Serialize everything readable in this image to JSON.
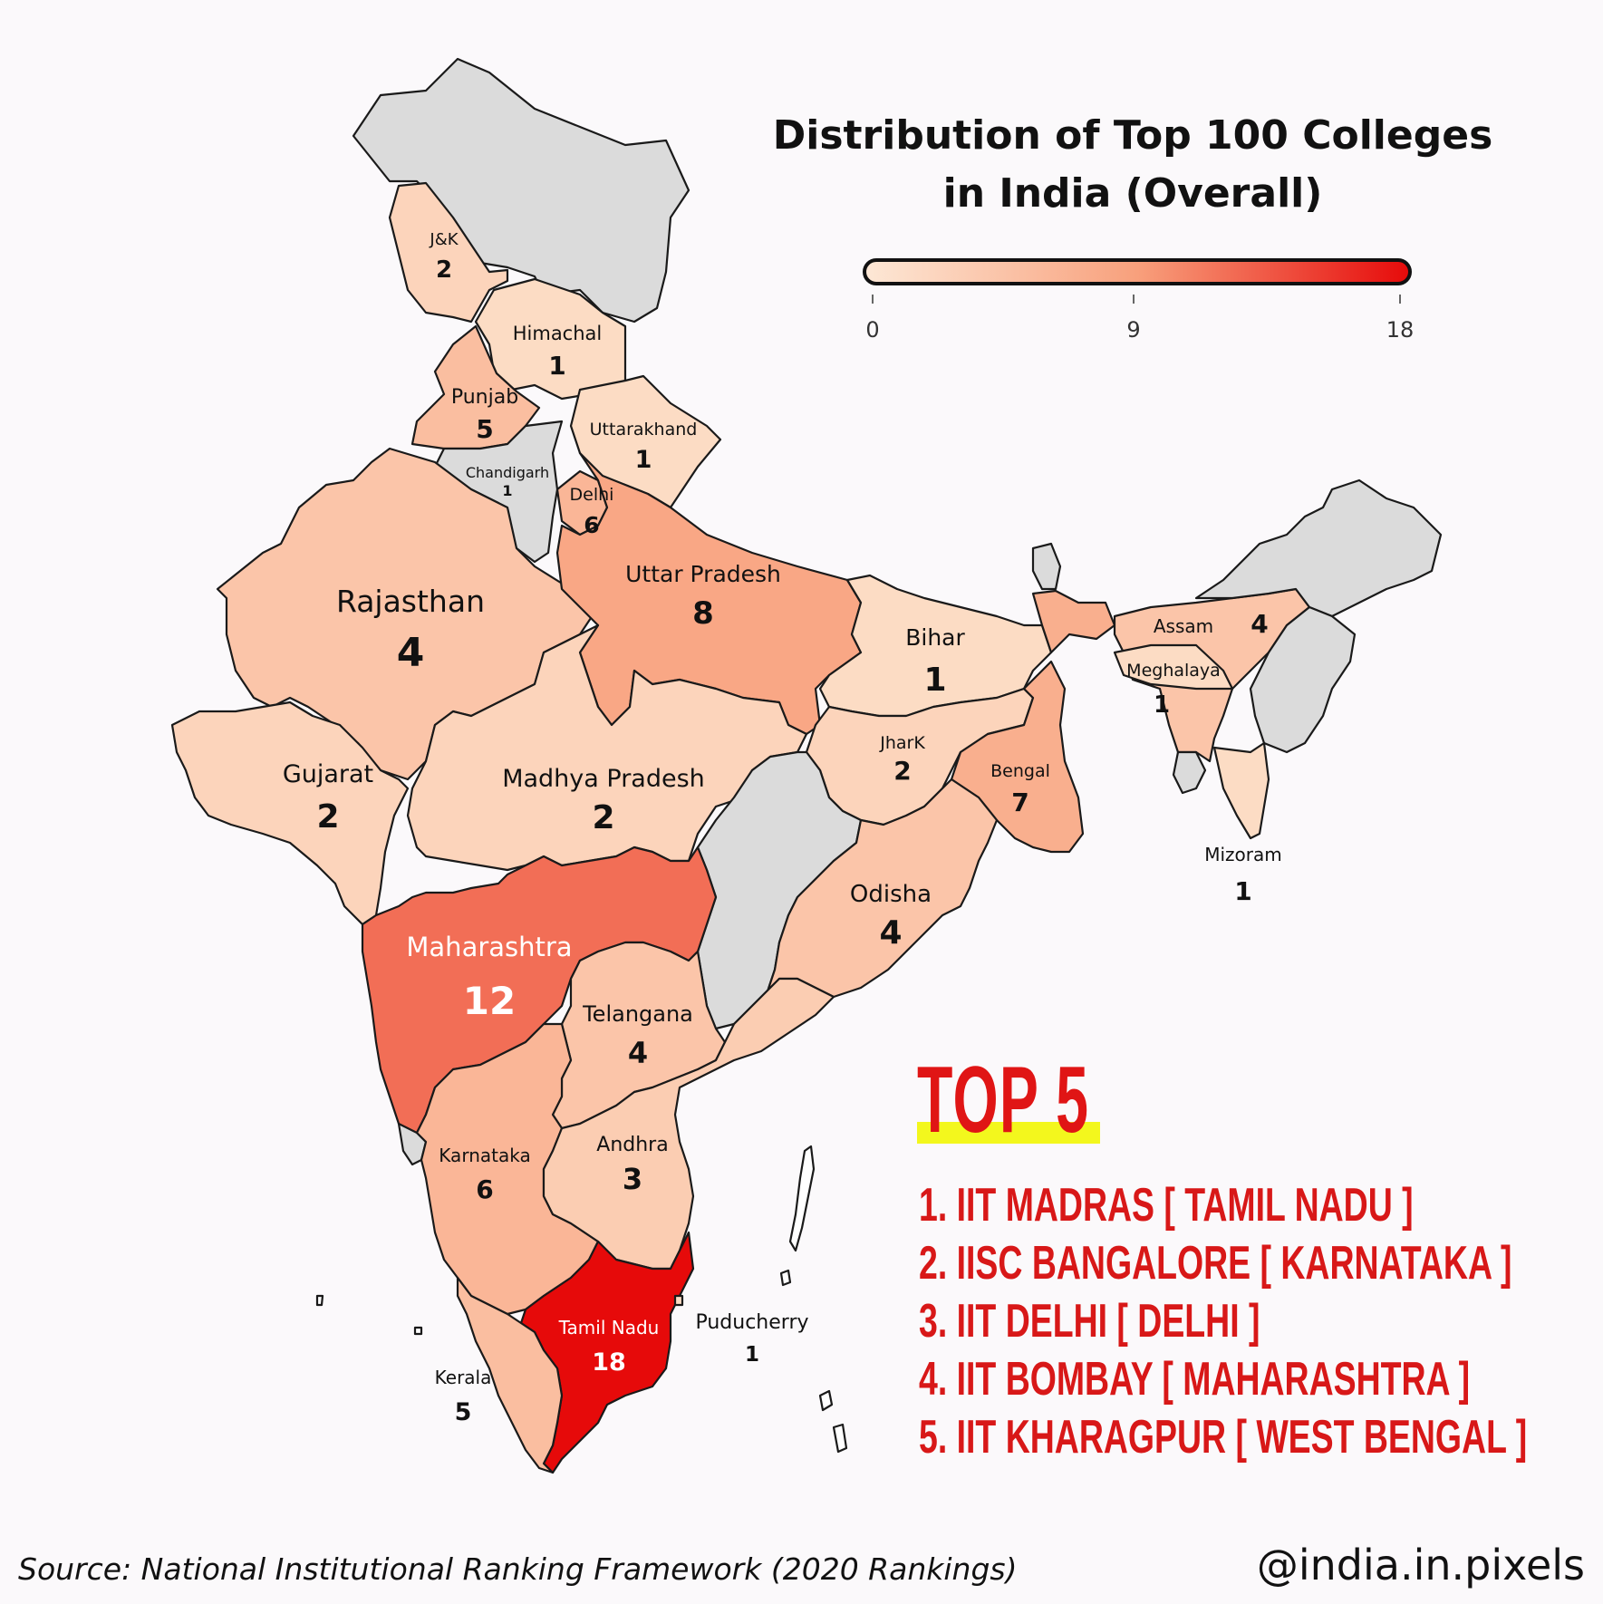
{
  "title": "Distribution of Top 100 Colleges in India (Overall)",
  "legend": {
    "min": "0",
    "mid": "9",
    "max": "18",
    "color_low": "#fde3cd",
    "color_high": "#e60a0a"
  },
  "colors": {
    "no_data": "#dbdbdb",
    "background": "#fbf9fb",
    "accent_red": "#d81818",
    "highlight_yellow": "#f3f71d"
  },
  "states": {
    "ladakh": {
      "name": "",
      "value": null
    },
    "jk": {
      "name": "J&K",
      "value": "2"
    },
    "himachal": {
      "name": "Himachal",
      "value": "1"
    },
    "punjab": {
      "name": "Punjab",
      "value": "5"
    },
    "chandigarh": {
      "name": "Chandigarh",
      "value": "1"
    },
    "uttarakhand": {
      "name": "Uttarakhand",
      "value": "1"
    },
    "delhi": {
      "name": "Delhi",
      "value": "6"
    },
    "haryana": {
      "name": "",
      "value": null
    },
    "rajasthan": {
      "name": "Rajasthan",
      "value": "4"
    },
    "up": {
      "name": "Uttar Pradesh",
      "value": "8"
    },
    "bihar": {
      "name": "Bihar",
      "value": "1"
    },
    "sikkim": {
      "name": "",
      "value": null
    },
    "assam": {
      "name": "Assam",
      "value": "4"
    },
    "meghalaya": {
      "name": "Meghalaya",
      "value": "1"
    },
    "arunachal": {
      "name": "",
      "value": null
    },
    "nagaland_manipur": {
      "name": "",
      "value": null
    },
    "tripura": {
      "name": "",
      "value": null
    },
    "mizoram": {
      "name": "Mizoram",
      "value": "1"
    },
    "gujarat": {
      "name": "Gujarat",
      "value": "2"
    },
    "mp": {
      "name": "Madhya Pradesh",
      "value": "2"
    },
    "jharkhand": {
      "name": "JharK",
      "value": "2"
    },
    "bengal": {
      "name": "Bengal",
      "value": "7"
    },
    "chhattisgarh": {
      "name": "",
      "value": null
    },
    "odisha": {
      "name": "Odisha",
      "value": "4"
    },
    "maharashtra": {
      "name": "Maharashtra",
      "value": "12"
    },
    "telangana": {
      "name": "Telangana",
      "value": "4"
    },
    "goa": {
      "name": "",
      "value": null
    },
    "karnataka": {
      "name": "Karnataka",
      "value": "6"
    },
    "andhra": {
      "name": "Andhra",
      "value": "3"
    },
    "tamilnadu": {
      "name": "Tamil Nadu",
      "value": "18"
    },
    "kerala": {
      "name": "Kerala",
      "value": "5"
    },
    "puducherry": {
      "name": "Puducherry",
      "value": "1"
    }
  },
  "top5": {
    "heading": "TOP 5",
    "items": [
      "1. IIT MADRAS [ TAMIL NADU ]",
      "2. IISC BANGALORE [ KARNATAKA ]",
      "3. IIT DELHI [ DELHI ]",
      "4. IIT BOMBAY [ MAHARASHTRA ]",
      "5. IIT KHARAGPUR [ WEST BENGAL ]"
    ]
  },
  "source": "Source: National Institutional Ranking Framework (2020 Rankings)",
  "handle": "@india.in.pixels"
}
